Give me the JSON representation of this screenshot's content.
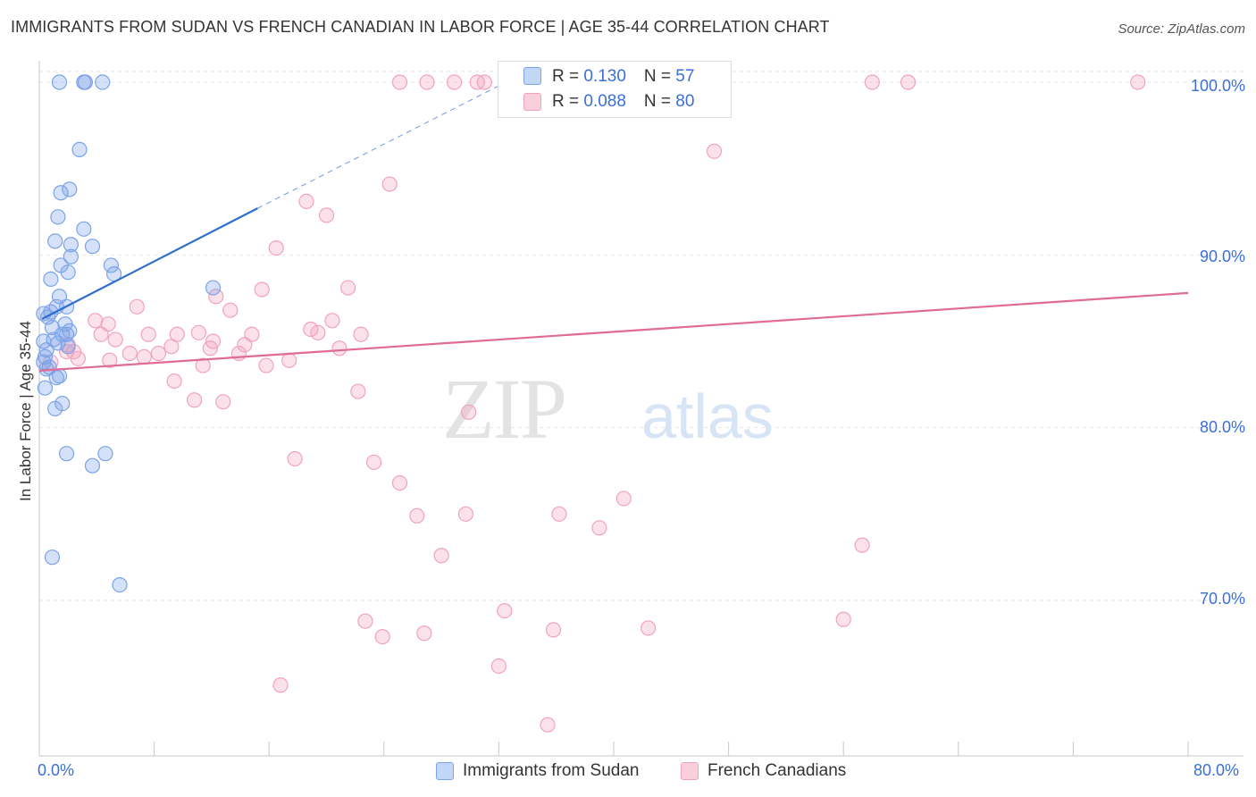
{
  "title": "IMMIGRANTS FROM SUDAN VS FRENCH CANADIAN IN LABOR FORCE | AGE 35-44 CORRELATION CHART",
  "source": "Source: ZipAtlas.com",
  "watermark": {
    "zip": "ZIP",
    "atlas": "atlas"
  },
  "inset_legend": [
    {
      "r_label": "R = ",
      "r_value": "0.130",
      "n_label": "N = ",
      "n_value": "57"
    },
    {
      "r_label": "R = ",
      "r_value": "0.088",
      "n_label": "N = ",
      "n_value": "80"
    }
  ],
  "chart_data": {
    "type": "scatter",
    "title": "IMMIGRANTS FROM SUDAN VS FRENCH CANADIAN IN LABOR FORCE | AGE 35-44 CORRELATION CHART",
    "xlabel": "",
    "ylabel": "In Labor Force | Age 35-44",
    "xlim": [
      0,
      80
    ],
    "ylim": [
      61,
      101.5
    ],
    "x_tick_labels": [
      "0.0%",
      "80.0%"
    ],
    "y_ticks": [
      70,
      80,
      90,
      100
    ],
    "y_tick_labels": [
      "70.0%",
      "80.0%",
      "90.0%",
      "100.0%"
    ],
    "grid": true,
    "legend_position": "bottom",
    "colors": {
      "sudan": "#7ba3e8",
      "sudan_line": "#2e6fcc",
      "french": "#f2a3bb",
      "french_line": "#e06b96",
      "tick_text": "#3a6fd8"
    },
    "series": [
      {
        "name": "Immigrants from Sudan",
        "R": 0.13,
        "N": 57,
        "trend": {
          "x0": 0.2,
          "y0": 86.3,
          "x1": 15.2,
          "y1": 92.7,
          "dash_to_x": 32.5,
          "dash_to_y": 100.0
        },
        "points": [
          [
            1.4,
            100.0
          ],
          [
            3.1,
            100.0
          ],
          [
            3.2,
            100.0
          ],
          [
            4.4,
            100.0
          ],
          [
            2.8,
            96.1
          ],
          [
            1.5,
            93.6
          ],
          [
            2.1,
            93.8
          ],
          [
            1.3,
            92.2
          ],
          [
            3.1,
            91.5
          ],
          [
            1.1,
            90.8
          ],
          [
            2.2,
            90.6
          ],
          [
            3.7,
            90.5
          ],
          [
            2.2,
            89.9
          ],
          [
            1.5,
            89.4
          ],
          [
            5.0,
            89.4
          ],
          [
            2.0,
            89.0
          ],
          [
            5.2,
            88.9
          ],
          [
            0.8,
            88.6
          ],
          [
            12.1,
            88.1
          ],
          [
            1.4,
            87.6
          ],
          [
            1.2,
            87.0
          ],
          [
            1.9,
            87.0
          ],
          [
            0.3,
            86.6
          ],
          [
            0.8,
            86.7
          ],
          [
            0.6,
            86.4
          ],
          [
            1.8,
            86.0
          ],
          [
            2.1,
            85.6
          ],
          [
            0.9,
            85.8
          ],
          [
            1.6,
            85.4
          ],
          [
            1.9,
            85.4
          ],
          [
            1.0,
            85.1
          ],
          [
            0.3,
            85.0
          ],
          [
            1.3,
            84.9
          ],
          [
            2.0,
            84.7
          ],
          [
            0.5,
            84.5
          ],
          [
            0.4,
            84.1
          ],
          [
            0.3,
            83.8
          ],
          [
            0.7,
            83.5
          ],
          [
            0.5,
            83.4
          ],
          [
            1.4,
            83.0
          ],
          [
            1.2,
            82.9
          ],
          [
            0.4,
            82.3
          ],
          [
            1.6,
            81.4
          ],
          [
            1.1,
            81.1
          ],
          [
            1.9,
            78.5
          ],
          [
            4.6,
            78.5
          ],
          [
            3.7,
            77.8
          ],
          [
            0.9,
            72.5
          ],
          [
            5.6,
            70.9
          ]
        ]
      },
      {
        "name": "French Canadians",
        "R": 0.088,
        "N": 80,
        "trend": {
          "x0": 0.0,
          "y0": 83.3,
          "x1": 80.0,
          "y1": 87.8
        },
        "points": [
          [
            25.1,
            100.0
          ],
          [
            27.0,
            100.0
          ],
          [
            28.9,
            100.0
          ],
          [
            30.5,
            100.0
          ],
          [
            31.0,
            100.0
          ],
          [
            34.5,
            100.0
          ],
          [
            58.0,
            100.0
          ],
          [
            60.5,
            100.0
          ],
          [
            76.5,
            100.0
          ],
          [
            47.0,
            96.0
          ],
          [
            24.4,
            94.1
          ],
          [
            18.6,
            93.1
          ],
          [
            20.0,
            92.3
          ],
          [
            16.5,
            90.4
          ],
          [
            21.5,
            88.1
          ],
          [
            15.5,
            88.0
          ],
          [
            12.3,
            87.6
          ],
          [
            6.8,
            87.0
          ],
          [
            13.3,
            86.8
          ],
          [
            3.9,
            86.2
          ],
          [
            4.8,
            86.0
          ],
          [
            20.4,
            86.2
          ],
          [
            18.9,
            85.7
          ],
          [
            19.4,
            85.5
          ],
          [
            22.4,
            85.4
          ],
          [
            4.3,
            85.4
          ],
          [
            7.6,
            85.4
          ],
          [
            9.6,
            85.4
          ],
          [
            11.1,
            85.5
          ],
          [
            14.8,
            85.4
          ],
          [
            5.3,
            85.1
          ],
          [
            12.1,
            85.0
          ],
          [
            2.0,
            84.8
          ],
          [
            9.2,
            84.7
          ],
          [
            11.9,
            84.6
          ],
          [
            14.3,
            84.8
          ],
          [
            20.9,
            84.6
          ],
          [
            2.4,
            84.4
          ],
          [
            1.9,
            84.4
          ],
          [
            6.3,
            84.3
          ],
          [
            7.3,
            84.1
          ],
          [
            8.3,
            84.3
          ],
          [
            13.9,
            84.3
          ],
          [
            2.7,
            84.0
          ],
          [
            4.9,
            83.9
          ],
          [
            17.4,
            83.9
          ],
          [
            0.8,
            83.8
          ],
          [
            11.4,
            83.6
          ],
          [
            15.8,
            83.6
          ],
          [
            9.4,
            82.7
          ],
          [
            22.2,
            82.1
          ],
          [
            10.8,
            81.6
          ],
          [
            12.8,
            81.5
          ],
          [
            29.9,
            80.9
          ],
          [
            17.8,
            78.2
          ],
          [
            23.3,
            78.0
          ],
          [
            25.1,
            76.8
          ],
          [
            40.7,
            75.9
          ],
          [
            26.3,
            74.9
          ],
          [
            29.7,
            75.0
          ],
          [
            36.2,
            75.0
          ],
          [
            39.0,
            74.2
          ],
          [
            57.3,
            73.2
          ],
          [
            28.0,
            72.6
          ],
          [
            32.4,
            69.4
          ],
          [
            22.7,
            68.8
          ],
          [
            35.8,
            68.3
          ],
          [
            42.4,
            68.4
          ],
          [
            56.0,
            68.9
          ],
          [
            23.9,
            67.9
          ],
          [
            26.8,
            68.1
          ],
          [
            32.0,
            66.2
          ],
          [
            16.8,
            65.1
          ],
          [
            35.4,
            62.8
          ]
        ]
      }
    ]
  }
}
